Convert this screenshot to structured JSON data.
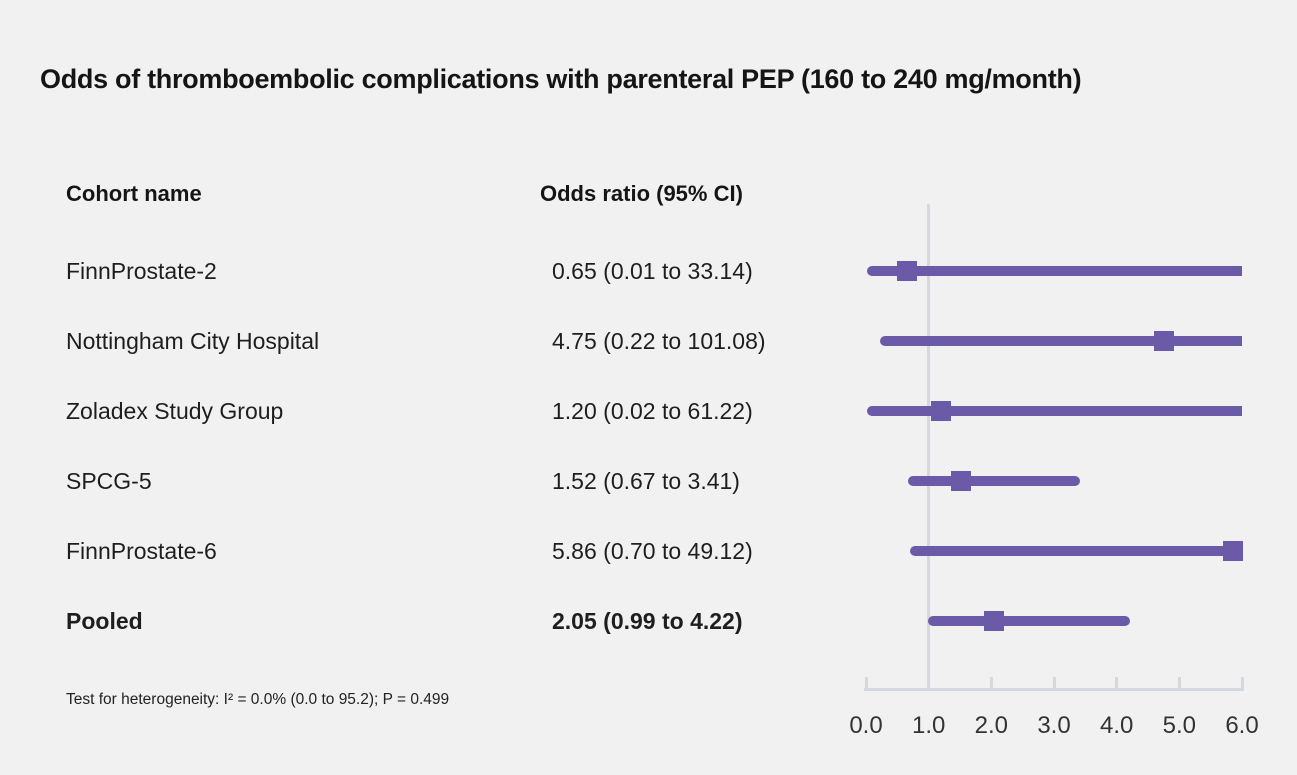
{
  "title": "Odds of thromboembolic complications with parenteral PEP (160 to 240 mg/month)",
  "columns": {
    "cohort": "Cohort name",
    "or": "Odds ratio (95% CI)"
  },
  "footnote": "Test for heterogeneity: I² = 0.0% (0.0 to 95.2); P = 0.499",
  "colors": {
    "marker": "#6a5aa8",
    "ci_line": "#6a5aa8",
    "reference_line": "#d5d9df",
    "axis": "#d5d9df",
    "background": "#f2f1f1",
    "text": "#1b1b1b"
  },
  "chart_data": {
    "type": "forest",
    "title": "Odds of thromboembolic complications with parenteral PEP (160 to 240 mg/month)",
    "xlim": [
      0,
      6
    ],
    "reference_line": 1.0,
    "ticks": [
      0,
      1,
      2,
      3,
      4,
      5,
      6
    ],
    "tick_labels": [
      "0.0",
      "1.0",
      "2.0",
      "3.0",
      "4.0",
      "5.0",
      "6.0"
    ],
    "studies": [
      {
        "name": "FinnProstate-2",
        "or": 0.65,
        "ci_low": 0.01,
        "ci_high": 33.14,
        "label": "0.65 (0.01 to 33.14)",
        "bold": false
      },
      {
        "name": "Nottingham City Hospital",
        "or": 4.75,
        "ci_low": 0.22,
        "ci_high": 101.08,
        "label": "4.75 (0.22 to 101.08)",
        "bold": false
      },
      {
        "name": "Zoladex Study Group",
        "or": 1.2,
        "ci_low": 0.02,
        "ci_high": 61.22,
        "label": "1.20 (0.02 to 61.22)",
        "bold": false
      },
      {
        "name": "SPCG-5",
        "or": 1.52,
        "ci_low": 0.67,
        "ci_high": 3.41,
        "label": "1.52 (0.67 to 3.41)",
        "bold": false
      },
      {
        "name": "FinnProstate-6",
        "or": 5.86,
        "ci_low": 0.7,
        "ci_high": 49.12,
        "label": "5.86 (0.70 to 49.12)",
        "bold": false
      },
      {
        "name": "Pooled",
        "or": 2.05,
        "ci_low": 0.99,
        "ci_high": 4.22,
        "label": "2.05 (0.99 to 4.22)",
        "bold": true
      }
    ]
  }
}
